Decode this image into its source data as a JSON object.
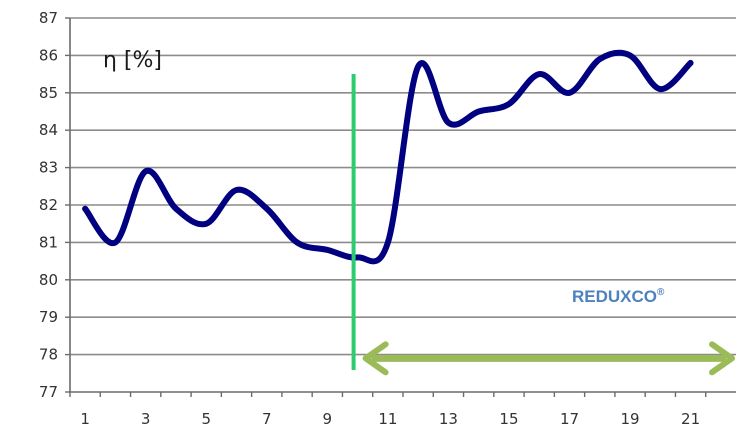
{
  "chart_data": {
    "type": "line",
    "title": "",
    "xlabel": "",
    "ylabel": "η [%]",
    "xlim": [
      0.5,
      22.5
    ],
    "ylim": [
      77,
      87
    ],
    "grid": true,
    "x_tick_labels": [
      "1",
      "3",
      "5",
      "7",
      "9",
      "11",
      "13",
      "15",
      "17",
      "19",
      "21"
    ],
    "y_tick_labels": [
      "77",
      "78",
      "79",
      "80",
      "81",
      "82",
      "83",
      "84",
      "85",
      "86",
      "87"
    ],
    "series": [
      {
        "name": "",
        "color": "#000080",
        "x": [
          1,
          2,
          3,
          4,
          5,
          6,
          7,
          8,
          9,
          10,
          11,
          12,
          13,
          14,
          15,
          16,
          17,
          18,
          19,
          20,
          21
        ],
        "y": [
          81.9,
          81.0,
          82.9,
          81.9,
          81.5,
          82.4,
          81.9,
          81.0,
          80.8,
          80.6,
          81.0,
          85.7,
          84.2,
          84.5,
          84.7,
          85.5,
          85.0,
          85.9,
          86.0,
          85.1,
          85.8
        ]
      }
    ],
    "annotations": {
      "divider_x": 10,
      "divider_color": "#2ecc71",
      "label": "REDUXCO",
      "label_superscript": "®",
      "label_color": "#4f81bd",
      "arrow_color": "#9bbb59",
      "arrow_y": 77.9,
      "arrow_from_x": 10,
      "arrow_to_x": 22.5
    }
  }
}
